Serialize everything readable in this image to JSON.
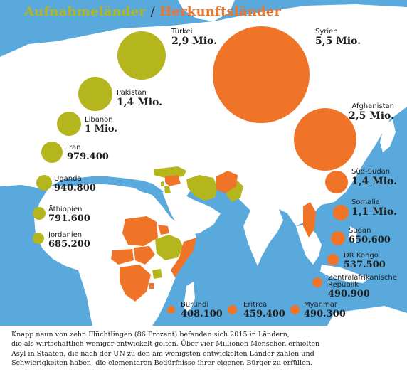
{
  "title": {
    "host_label": "Aufnahmeländer",
    "separator": "/",
    "origin_label": "Herkunftsländer"
  },
  "colors": {
    "sea": "#5aa9dc",
    "land": "#ffffff",
    "host": "#b5b51e",
    "origin": "#f07428",
    "text": "#1d1d1d"
  },
  "hosts": [
    {
      "country": "Türkei",
      "value": "2,9 Mio."
    },
    {
      "country": "Pakistan",
      "value": "1,4 Mio."
    },
    {
      "country": "Libanon",
      "value": "1 Mio."
    },
    {
      "country": "Iran",
      "value": "979.400"
    },
    {
      "country": "Uganda",
      "value": "940.800"
    },
    {
      "country": "Äthiopien",
      "value": "791.600"
    },
    {
      "country": "Jordanien",
      "value": "685.200"
    }
  ],
  "origins": [
    {
      "country": "Syrien",
      "value": "5,5 Mio."
    },
    {
      "country": "Afghanistan",
      "value": "2,5 Mio."
    },
    {
      "country": "Süd-Sudan",
      "value": "1,4 Mio."
    },
    {
      "country": "Somalia",
      "value": "1,1 Mio."
    },
    {
      "country": "Sudan",
      "value": "650.600"
    },
    {
      "country": "DR Kongo",
      "value": "537.500"
    },
    {
      "country": "Zentralafrikanische Republik",
      "value": "490.900",
      "line1": "Zentralafrikanische",
      "line2": "Republik"
    },
    {
      "country": "Burundi",
      "value": "408.100"
    },
    {
      "country": "Eritrea",
      "value": "459.400"
    },
    {
      "country": "Myanmar",
      "value": "490.300"
    }
  ],
  "caption": {
    "line1": "Knapp neun von zehn Flüchtlingen (86 Prozent) befanden sich 2015 in Ländern,",
    "line2": "die als wirtschaftlich weniger entwickelt gelten. Über vier Millionen Menschen erhielten",
    "line3": "Asyl in Staaten, die nach der UN zu den am wenigsten entwickelten Länder zählen und",
    "line4": "Schwierigkeiten haben, die elementaren Bedürfnisse ihrer eigenen Bürger zu erfüllen."
  }
}
